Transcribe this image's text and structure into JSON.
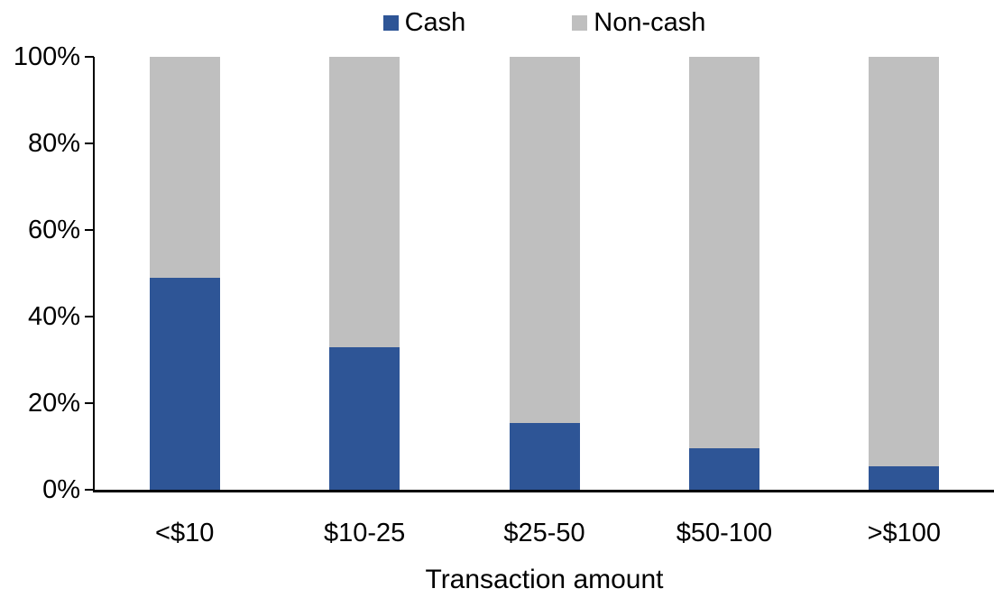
{
  "chart_data": {
    "type": "bar",
    "stacked": true,
    "orientation": "vertical",
    "title": "",
    "xlabel": "Transaction amount",
    "ylabel": "",
    "categories": [
      "<$10",
      "$10-25",
      "$25-50",
      "$50-100",
      ">$100"
    ],
    "series": [
      {
        "name": "Cash",
        "color": "#2E5596",
        "values": [
          49,
          33,
          15.5,
          9.5,
          5.5
        ]
      },
      {
        "name": "Non-cash",
        "color": "#BFBFBF",
        "values": [
          51,
          67,
          84.5,
          90.5,
          94.5
        ]
      }
    ],
    "ylim": [
      0,
      100
    ],
    "yticks": [
      {
        "value": 0,
        "label": "0%"
      },
      {
        "value": 20,
        "label": "20%"
      },
      {
        "value": 40,
        "label": "40%"
      },
      {
        "value": 60,
        "label": "60%"
      },
      {
        "value": 80,
        "label": "80%"
      },
      {
        "value": 100,
        "label": "100%"
      }
    ],
    "legend_position": "top",
    "grid": false,
    "axis_color": "#000000",
    "text_color": "#000000",
    "background_color": "#FFFFFF"
  }
}
